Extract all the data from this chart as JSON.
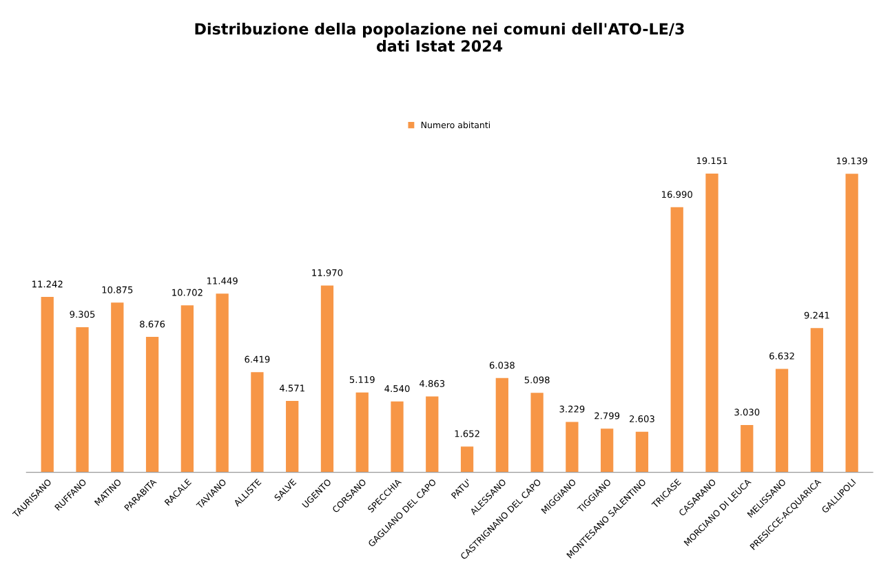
{
  "chart_data": {
    "type": "bar",
    "title": "Distribuzione della popolazione nei comuni dell'ATO-LE/3\ndati Istat 2024",
    "categories": [
      "TAURISANO",
      "RUFFANO",
      "MATINO",
      "PARABITA",
      "RACALE",
      "TAVIANO",
      "ALLISTE",
      "SALVE",
      "UGENTO",
      "CORSANO",
      "SPECCHIA",
      "GAGLIANO DEL CAPO",
      "PATU'",
      "ALESSANO",
      "CASTRIGNANO DEL CAPO",
      "MIGGIANO",
      "TIGGIANO",
      "MONTESANO SALENTINO",
      "TRICASE",
      "CASARANO",
      "MORCIANO DI LEUCA",
      "MELISSANO",
      "PRESICCE-ACQUARICA",
      "GALLIPOLI"
    ],
    "series": [
      {
        "name": "Numero abitanti",
        "color": "#f79646",
        "values": [
          11242,
          9305,
          10875,
          8676,
          10702,
          11449,
          6419,
          4571,
          11970,
          5119,
          4540,
          4863,
          1652,
          6038,
          5098,
          3229,
          2799,
          2603,
          16990,
          19151,
          3030,
          6632,
          9241,
          19139
        ],
        "value_labels": [
          "11.242",
          "9.305",
          "10.875",
          "8.676",
          "10.702",
          "11.449",
          "6.419",
          "4.571",
          "11.970",
          "5.119",
          "4.540",
          "4.863",
          "1.652",
          "6.038",
          "5.098",
          "3.229",
          "2.799",
          "2.603",
          "16.990",
          "19.151",
          "3.030",
          "6.632",
          "9.241",
          "19.139"
        ]
      }
    ],
    "legend": "top",
    "grid": false
  }
}
